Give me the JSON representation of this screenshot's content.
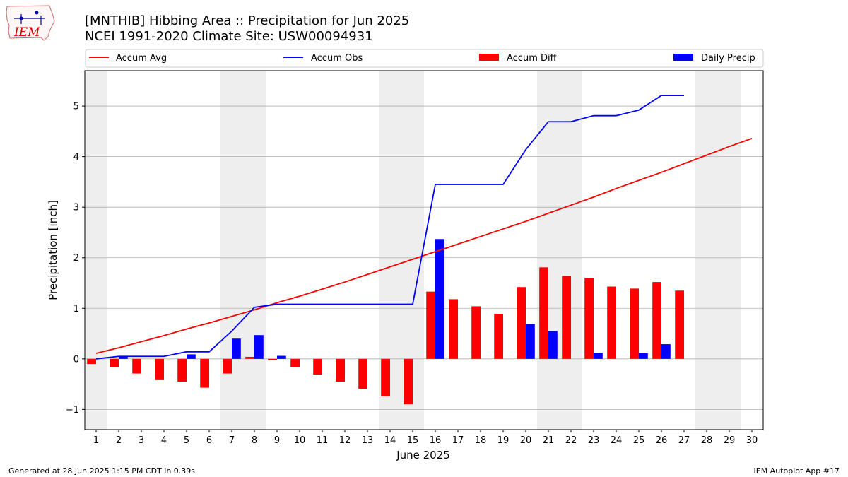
{
  "header": {
    "title_line1": "[MNTHIB] Hibbing Area :: Precipitation for Jun 2025",
    "title_line2": "NCEI 1991-2020 Climate Site: USW00094931",
    "logo_text": "IEM"
  },
  "footer": {
    "generated": "Generated at 28 Jun 2025 1:15 PM CDT in 0.39s",
    "app": "IEM Autoplot App #17"
  },
  "colors": {
    "accum_avg": "#ff0000",
    "accum_obs": "#0000ff",
    "accum_diff": "#ff0000",
    "daily_precip": "#0000ff",
    "weekend_shade": "#eeeeee",
    "grid": "#b0b0b0"
  },
  "chart_data": {
    "type": "bar",
    "xlabel": "June 2025",
    "ylabel": "Precipitation [inch]",
    "xlim": [
      0.5,
      30.5
    ],
    "ylim": [
      -1.4,
      5.7
    ],
    "yticks": [
      -1,
      0,
      1,
      2,
      3,
      4,
      5
    ],
    "ytick_labels": [
      "−1",
      "0",
      "1",
      "2",
      "3",
      "4",
      "5"
    ],
    "grid": "horizontal",
    "legend_placement": "top, above plot",
    "legend": [
      "Accum Avg",
      "Accum Obs",
      "Accum Diff",
      "Daily Precip"
    ],
    "days": [
      1,
      2,
      3,
      4,
      5,
      6,
      7,
      8,
      9,
      10,
      11,
      12,
      13,
      14,
      15,
      16,
      17,
      18,
      19,
      20,
      21,
      22,
      23,
      24,
      25,
      26,
      27,
      28,
      29,
      30
    ],
    "weekend_shaded_days": [
      1,
      7,
      8,
      14,
      15,
      21,
      22,
      28,
      29
    ],
    "series": [
      {
        "name": "Accum Avg",
        "type": "line",
        "values": [
          0.11,
          0.22,
          0.34,
          0.46,
          0.59,
          0.71,
          0.84,
          0.97,
          1.11,
          1.24,
          1.38,
          1.52,
          1.67,
          1.82,
          1.97,
          2.12,
          2.27,
          2.42,
          2.57,
          2.72,
          2.88,
          3.04,
          3.2,
          3.37,
          3.53,
          3.69,
          3.86,
          4.03,
          4.2,
          4.36
        ]
      },
      {
        "name": "Accum Obs",
        "type": "line",
        "values": [
          0.0,
          0.05,
          0.05,
          0.05,
          0.14,
          0.14,
          0.55,
          1.02,
          1.08,
          1.08,
          1.08,
          1.08,
          1.08,
          1.08,
          1.08,
          3.45,
          3.45,
          3.45,
          3.45,
          4.14,
          4.69,
          4.69,
          4.81,
          4.81,
          4.92,
          5.21,
          5.21
        ]
      },
      {
        "name": "Accum Diff",
        "type": "bar",
        "values": [
          -0.1,
          -0.17,
          -0.29,
          -0.42,
          -0.45,
          -0.57,
          -0.29,
          0.04,
          -0.03,
          -0.17,
          -0.31,
          -0.45,
          -0.59,
          -0.74,
          -0.9,
          1.33,
          1.18,
          1.04,
          0.89,
          1.42,
          1.81,
          1.64,
          1.6,
          1.43,
          1.39,
          1.52,
          1.35
        ]
      },
      {
        "name": "Daily Precip",
        "type": "bar",
        "values": [
          0.0,
          0.05,
          0.0,
          0.0,
          0.09,
          0.0,
          0.4,
          0.47,
          0.06,
          0.0,
          0.0,
          0.0,
          0.0,
          0.0,
          0.0,
          2.37,
          0.0,
          0.0,
          0.0,
          0.69,
          0.55,
          0.0,
          0.12,
          0.0,
          0.11,
          0.29,
          0.0
        ]
      }
    ]
  }
}
